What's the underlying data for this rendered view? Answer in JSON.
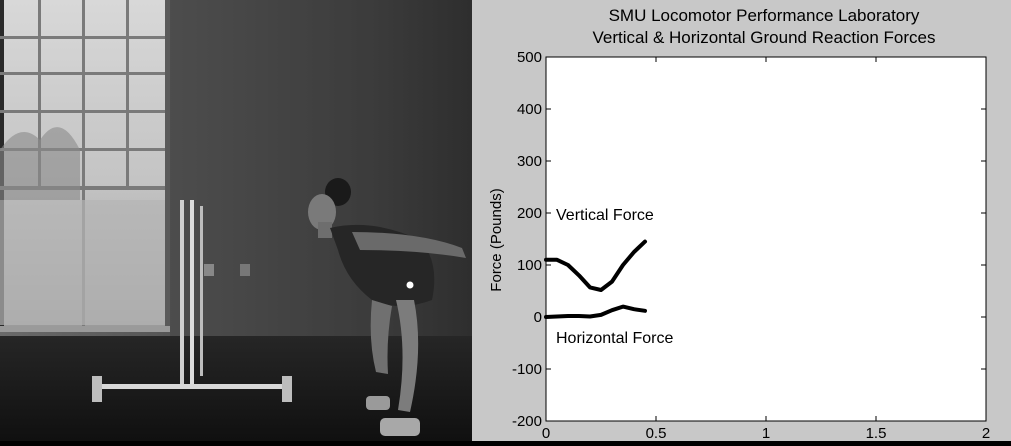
{
  "chart_data": {
    "type": "line",
    "title": "SMU Locomotor Performance Laboratory",
    "subtitle": "Vertical & Horizontal Ground Reaction Forces",
    "xlabel": "",
    "ylabel": "Force (Pounds)",
    "xlim": [
      0,
      2
    ],
    "ylim": [
      -200,
      500
    ],
    "xticks": [
      "0",
      "0.5",
      "1",
      "1.5",
      "2"
    ],
    "yticks": [
      "-200",
      "-100",
      "0",
      "100",
      "200",
      "300",
      "400",
      "500"
    ],
    "grid": false,
    "series": [
      {
        "name": "Vertical Force",
        "x": [
          0.0,
          0.05,
          0.1,
          0.15,
          0.2,
          0.25,
          0.3,
          0.35,
          0.4,
          0.45
        ],
        "y": [
          110,
          110,
          100,
          80,
          57,
          52,
          68,
          100,
          125,
          145
        ]
      },
      {
        "name": "Horizontal Force",
        "x": [
          0.0,
          0.05,
          0.1,
          0.15,
          0.2,
          0.25,
          0.3,
          0.35,
          0.4,
          0.45
        ],
        "y": [
          0,
          1,
          2,
          2,
          1,
          4,
          13,
          20,
          15,
          12
        ]
      }
    ]
  }
}
